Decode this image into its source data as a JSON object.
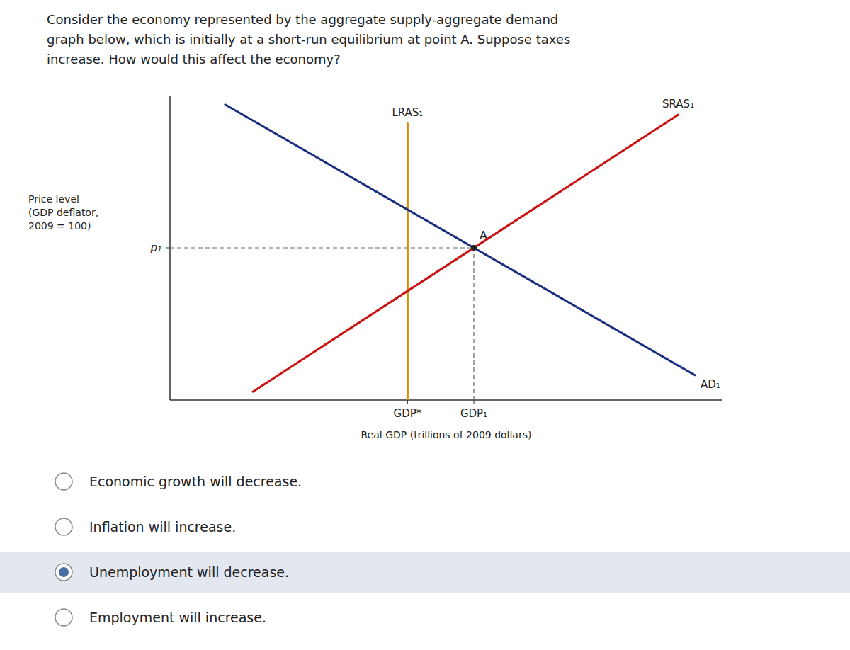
{
  "chart_data": {
    "type": "line",
    "title": "Consider the economy represented by the aggregate supply-aggregate demand\ngraph below, which is initially at a short-run equilibrium at point A.  Suppose taxes\nincrease.  How would this affect the economy?",
    "x_label": "Real GDP (trillions of 2009 dollars)",
    "y_label": "Price level\n(GDP deflator,\n2009 = 100)",
    "xlim": [
      0,
      10
    ],
    "ylim": [
      0,
      11
    ],
    "xticks": [
      {
        "value": 4.3,
        "label": "GDP*"
      },
      {
        "value": 5.5,
        "label": "GDP₁"
      }
    ],
    "yticks": [
      {
        "value": 5.5,
        "label": "p₁"
      }
    ],
    "grid": false,
    "series": [
      {
        "name": "LRAS₁",
        "color": "#d4900a",
        "x": [
          4.3,
          4.3
        ],
        "values": [
          0,
          10
        ]
      },
      {
        "name": "SRAS₁",
        "color": "#cc1111",
        "x": [
          1.5,
          9.2
        ],
        "values": [
          0.3,
          10.31
        ]
      },
      {
        "name": "AD₁",
        "color": "#1a2e80",
        "x": [
          1.0,
          9.5
        ],
        "values": [
          10.675,
          0.9
        ]
      }
    ],
    "annotations": [
      {
        "text": "A",
        "x": 5.5,
        "y": 5.5
      }
    ],
    "choices": [
      {
        "text": "Economic growth will decrease.",
        "selected": false
      },
      {
        "text": "Inflation will increase.",
        "selected": false
      },
      {
        "text": "Unemployment will decrease.",
        "selected": true
      },
      {
        "text": "Employment will increase.",
        "selected": false
      }
    ]
  }
}
